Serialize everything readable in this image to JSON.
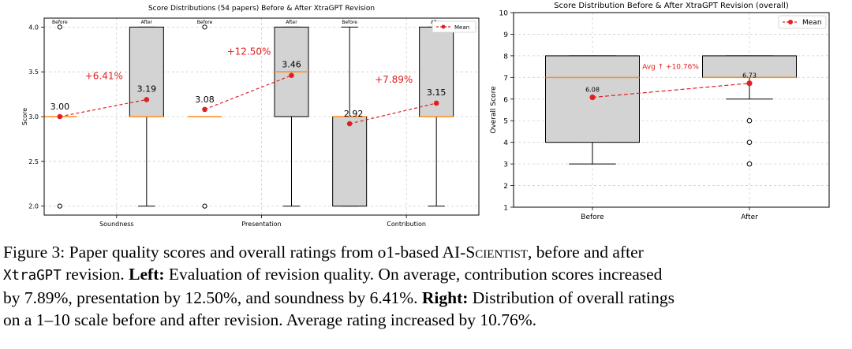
{
  "chart_data": [
    {
      "type": "box",
      "title": "Score Distributions (54 papers) Before & After XtraGPT Revision",
      "xlabel": "",
      "ylabel": "Score",
      "ylim": [
        1.9,
        4.1
      ],
      "yticks": [
        "2.0",
        "2.5",
        "3.0",
        "3.5",
        "4.0"
      ],
      "grid": true,
      "legend": {
        "placement": "top-right",
        "entries": [
          "Mean"
        ]
      },
      "group_labels": [
        "Before",
        "After"
      ],
      "categories": [
        "Soundness",
        "Presentation",
        "Contribution"
      ],
      "groups": [
        {
          "category": "Soundness",
          "before": {
            "q1": 3.0,
            "median": 3.0,
            "q3": 3.0,
            "whisker_low": 3.0,
            "whisker_high": 3.0,
            "outliers": [
              4.0,
              2.0
            ],
            "mean": 3.0,
            "mean_label": "3.00"
          },
          "after": {
            "q1": 3.0,
            "median": 3.0,
            "q3": 4.0,
            "whisker_low": 2.0,
            "whisker_high": 4.0,
            "outliers": [],
            "mean": 3.19,
            "mean_label": "3.19"
          },
          "change_label": "+6.41%"
        },
        {
          "category": "Presentation",
          "before": {
            "q1": 3.0,
            "median": 3.0,
            "q3": 3.0,
            "whisker_low": 3.0,
            "whisker_high": 3.0,
            "outliers": [
              4.0,
              2.0
            ],
            "mean": 3.08,
            "mean_label": "3.08"
          },
          "after": {
            "q1": 3.0,
            "median": 3.5,
            "q3": 4.0,
            "whisker_low": 2.0,
            "whisker_high": 4.0,
            "outliers": [],
            "mean": 3.46,
            "mean_label": "3.46"
          },
          "change_label": "+12.50%"
        },
        {
          "category": "Contribution",
          "before": {
            "q1": 2.0,
            "median": 3.0,
            "q3": 3.0,
            "whisker_low": 2.0,
            "whisker_high": 4.0,
            "outliers": [],
            "mean": 2.92,
            "mean_label": "2.92"
          },
          "after": {
            "q1": 3.0,
            "median": 3.0,
            "q3": 4.0,
            "whisker_low": 2.0,
            "whisker_high": 4.0,
            "outliers": [],
            "mean": 3.15,
            "mean_label": "3.15"
          },
          "change_label": "+7.89%"
        }
      ]
    },
    {
      "type": "box",
      "title": "Score Distribution Before & After XtraGPT Revision (overall)",
      "xlabel": "",
      "ylabel": "Overall Score",
      "ylim": [
        1,
        10
      ],
      "yticks": [
        "1",
        "2",
        "3",
        "4",
        "5",
        "6",
        "7",
        "8",
        "9",
        "10"
      ],
      "grid": true,
      "legend": {
        "placement": "top-right",
        "entries": [
          "Mean"
        ]
      },
      "categories": [
        "Before",
        "After"
      ],
      "boxes": [
        {
          "q1": 4,
          "median": 7,
          "q3": 8,
          "whisker_low": 3,
          "whisker_high": 8,
          "outliers": [],
          "mean": 6.08,
          "mean_label": "6.08"
        },
        {
          "q1": 7,
          "median": 7,
          "q3": 8,
          "whisker_low": 6,
          "whisker_high": 8,
          "outliers": [
            5,
            4,
            3
          ],
          "mean": 6.73,
          "mean_label": "6.73"
        }
      ],
      "change_label": "Avg ↑ +10.76%"
    }
  ],
  "colors": {
    "box_fill": "#d3d3d3",
    "median": "#ff8c1a",
    "mean": "#e02020",
    "text_red": "#e02020"
  },
  "caption": {
    "p1": "Figure 3: Paper quality scores and overall ratings from o1-based ",
    "p2": "AI-",
    "p3": "Scientist",
    "p4": ", before and after",
    "p5": "XtraGPT",
    "p6": " revision. ",
    "p7": "Left:",
    "p8": " Evaluation of revision quality. On average, contribution scores increased",
    "p9": "by 7.89%, presentation by 12.50%, and soundness by 6.41%. ",
    "p10": "Right:",
    "p11": " Distribution of overall ratings",
    "p12": "on a 1–10 scale before and after revision. Average rating increased by 10.76%."
  }
}
